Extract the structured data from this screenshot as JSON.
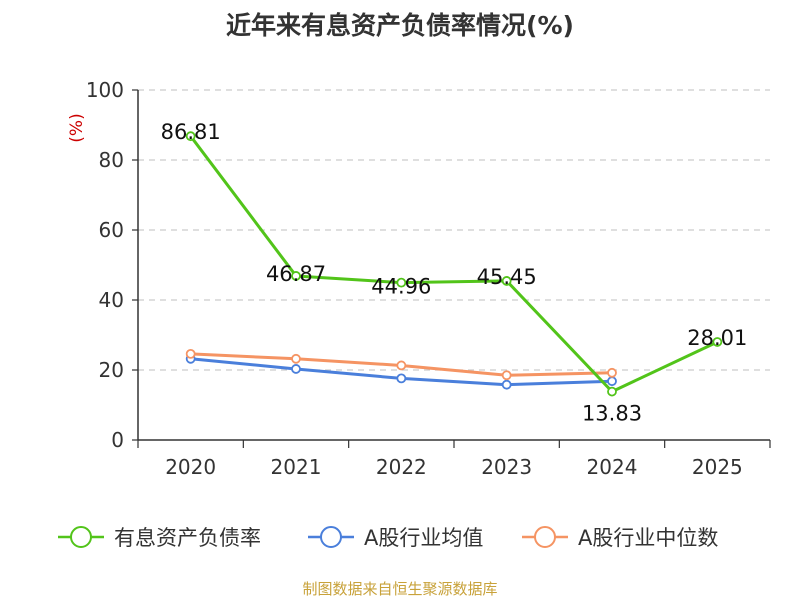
{
  "title": "近年来有息资产负债率情况(%)",
  "source": "制图数据来自恒生聚源数据库",
  "chart_data": {
    "type": "line",
    "title": "近年来有息资产负债率情况(%)",
    "ylabel": "(%)",
    "xlabel": "",
    "categories": [
      "2020",
      "2021",
      "2022",
      "2023",
      "2024",
      "2025"
    ],
    "ylim": [
      0,
      100
    ],
    "yticks": [
      "0",
      "20",
      "40",
      "60",
      "80",
      "100"
    ],
    "grid": true,
    "legend_position": "bottom",
    "series": [
      {
        "name": "有息资产负债率",
        "color": "#52c41a",
        "values": [
          86.81,
          46.87,
          44.96,
          45.45,
          13.83,
          28.01
        ],
        "labels": [
          "86.81",
          "46.87",
          "44.96",
          "45.45",
          "13.83",
          "28.01"
        ]
      },
      {
        "name": "A股行业均值",
        "color": "#4a7fdb",
        "values": [
          23.2,
          20.3,
          17.6,
          15.8,
          16.8,
          null
        ]
      },
      {
        "name": "A股行业中位数",
        "color": "#f59463",
        "values": [
          24.6,
          23.2,
          21.3,
          18.5,
          19.2,
          null
        ]
      }
    ]
  }
}
